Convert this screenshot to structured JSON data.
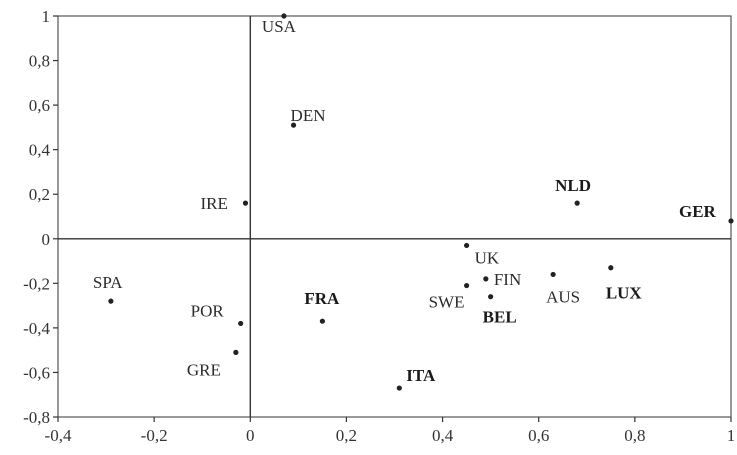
{
  "chart_data": {
    "type": "scatter",
    "title": "",
    "xlabel": "",
    "ylabel": "",
    "xlim": [
      -0.4,
      1
    ],
    "ylim": [
      -0.8,
      1
    ],
    "x_ticks": [
      "-0,4",
      "-0,2",
      "0",
      "0,2",
      "0,4",
      "0,6",
      "0,8",
      "1"
    ],
    "y_ticks": [
      "1",
      "0,8",
      "0,6",
      "0,4",
      "0,2",
      "0",
      "-0,2",
      "-0,4",
      "-0,6",
      "-0,8"
    ],
    "grid": false,
    "points": [
      {
        "label": "USA",
        "x": 0.07,
        "y": 1.0,
        "bold": false
      },
      {
        "label": "DEN",
        "x": 0.09,
        "y": 0.51,
        "bold": false
      },
      {
        "label": "IRE",
        "x": -0.01,
        "y": 0.16,
        "bold": false
      },
      {
        "label": "NLD",
        "x": 0.68,
        "y": 0.16,
        "bold": true
      },
      {
        "label": "GER",
        "x": 1.0,
        "y": 0.08,
        "bold": true
      },
      {
        "label": "UK",
        "x": 0.45,
        "y": -0.03,
        "bold": false
      },
      {
        "label": "FIN",
        "x": 0.49,
        "y": -0.18,
        "bold": false
      },
      {
        "label": "SWE",
        "x": 0.45,
        "y": -0.21,
        "bold": false
      },
      {
        "label": "BEL",
        "x": 0.5,
        "y": -0.26,
        "bold": true
      },
      {
        "label": "AUS",
        "x": 0.63,
        "y": -0.16,
        "bold": false
      },
      {
        "label": "LUX",
        "x": 0.75,
        "y": -0.13,
        "bold": true
      },
      {
        "label": "SPA",
        "x": -0.29,
        "y": -0.28,
        "bold": false
      },
      {
        "label": "POR",
        "x": -0.02,
        "y": -0.38,
        "bold": false
      },
      {
        "label": "FRA",
        "x": 0.15,
        "y": -0.37,
        "bold": true
      },
      {
        "label": "GRE",
        "x": -0.03,
        "y": -0.51,
        "bold": false
      },
      {
        "label": "ITA",
        "x": 0.31,
        "y": -0.67,
        "bold": true
      }
    ]
  }
}
